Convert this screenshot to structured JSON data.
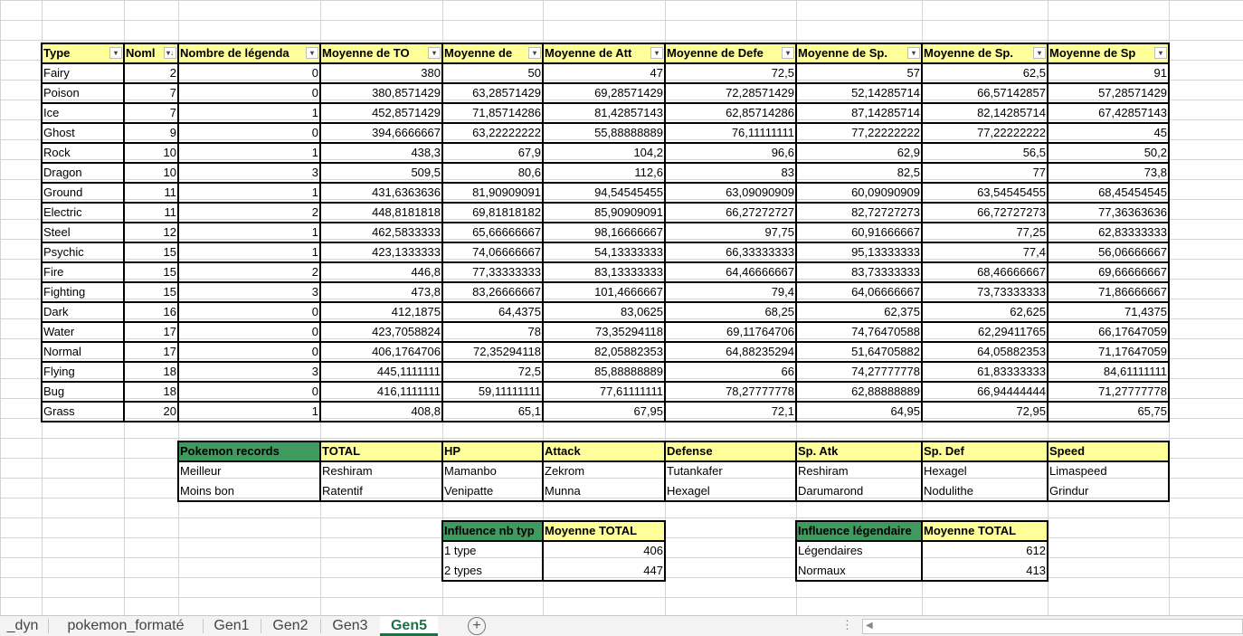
{
  "main_table": {
    "headers": [
      "Type",
      "Nombre",
      "Nombre de légendaires",
      "Moyenne de TOTAL",
      "Moyenne de HP",
      "Moyenne de Attack",
      "Moyenne de Defense",
      "Moyenne de Sp. Atk",
      "Moyenne de Sp. Def",
      "Moyenne de Speed"
    ],
    "header_display": [
      "Type",
      "Noml",
      "Nombre de légenda",
      "Moyenne de TO",
      "Moyenne de",
      "Moyenne de Att",
      "Moyenne de Defe",
      "Moyenne de Sp.",
      "Moyenne de Sp.",
      "Moyenne de Sp"
    ],
    "rows": [
      [
        "Fairy",
        "2",
        "0",
        "380",
        "50",
        "47",
        "72,5",
        "57",
        "62,5",
        "91"
      ],
      [
        "Poison",
        "7",
        "0",
        "380,8571429",
        "63,28571429",
        "69,28571429",
        "72,28571429",
        "52,14285714",
        "66,57142857",
        "57,28571429"
      ],
      [
        "Ice",
        "7",
        "1",
        "452,8571429",
        "71,85714286",
        "81,42857143",
        "62,85714286",
        "87,14285714",
        "82,14285714",
        "67,42857143"
      ],
      [
        "Ghost",
        "9",
        "0",
        "394,6666667",
        "63,22222222",
        "55,88888889",
        "76,11111111",
        "77,22222222",
        "77,22222222",
        "45"
      ],
      [
        "Rock",
        "10",
        "1",
        "438,3",
        "67,9",
        "104,2",
        "96,6",
        "62,9",
        "56,5",
        "50,2"
      ],
      [
        "Dragon",
        "10",
        "3",
        "509,5",
        "80,6",
        "112,6",
        "83",
        "82,5",
        "77",
        "73,8"
      ],
      [
        "Ground",
        "11",
        "1",
        "431,6363636",
        "81,90909091",
        "94,54545455",
        "63,09090909",
        "60,09090909",
        "63,54545455",
        "68,45454545"
      ],
      [
        "Electric",
        "11",
        "2",
        "448,8181818",
        "69,81818182",
        "85,90909091",
        "66,27272727",
        "82,72727273",
        "66,72727273",
        "77,36363636"
      ],
      [
        "Steel",
        "12",
        "1",
        "462,5833333",
        "65,66666667",
        "98,16666667",
        "97,75",
        "60,91666667",
        "77,25",
        "62,83333333"
      ],
      [
        "Psychic",
        "15",
        "1",
        "423,1333333",
        "74,06666667",
        "54,13333333",
        "66,33333333",
        "95,13333333",
        "77,4",
        "56,06666667"
      ],
      [
        "Fire",
        "15",
        "2",
        "446,8",
        "77,33333333",
        "83,13333333",
        "64,46666667",
        "83,73333333",
        "68,46666667",
        "69,66666667"
      ],
      [
        "Fighting",
        "15",
        "3",
        "473,8",
        "83,26666667",
        "101,4666667",
        "79,4",
        "64,06666667",
        "73,73333333",
        "71,86666667"
      ],
      [
        "Dark",
        "16",
        "0",
        "412,1875",
        "64,4375",
        "83,0625",
        "68,25",
        "62,375",
        "62,625",
        "71,4375"
      ],
      [
        "Water",
        "17",
        "0",
        "423,7058824",
        "78",
        "73,35294118",
        "69,11764706",
        "74,76470588",
        "62,29411765",
        "66,17647059"
      ],
      [
        "Normal",
        "17",
        "0",
        "406,1764706",
        "72,35294118",
        "82,05882353",
        "64,88235294",
        "51,64705882",
        "64,05882353",
        "71,17647059"
      ],
      [
        "Flying",
        "18",
        "3",
        "445,1111111",
        "72,5",
        "85,88888889",
        "66",
        "74,27777778",
        "61,83333333",
        "84,61111111"
      ],
      [
        "Bug",
        "18",
        "0",
        "416,1111111",
        "59,11111111",
        "77,61111111",
        "78,27777778",
        "62,88888889",
        "66,94444444",
        "71,27777778"
      ],
      [
        "Grass",
        "20",
        "1",
        "408,8",
        "65,1",
        "67,95",
        "72,1",
        "64,95",
        "72,95",
        "65,75"
      ]
    ]
  },
  "records_table": {
    "headers": [
      "Pokemon records",
      "TOTAL",
      "HP",
      "Attack",
      "Defense",
      "Sp. Atk",
      "Sp. Def",
      "Speed"
    ],
    "rows": [
      [
        "Meilleur",
        "Reshiram",
        "Mamanbo",
        "Zekrom",
        "Tutankafer",
        "Reshiram",
        "Hexagel",
        "Limaspeed"
      ],
      [
        "Moins bon",
        "Ratentif",
        "Venipatte",
        "Munna",
        "Hexagel",
        "Darumarond",
        "Nodulithe",
        "Grindur"
      ]
    ]
  },
  "types_table": {
    "headers": [
      "Influence nb types",
      "Moyenne TOTAL"
    ],
    "header_display": [
      "Influence nb typ",
      "Moyenne TOTAL"
    ],
    "rows": [
      [
        "1 type",
        "406"
      ],
      [
        "2 types",
        "447"
      ]
    ]
  },
  "legend_table": {
    "headers": [
      "Influence légendaire",
      "Moyenne TOTAL"
    ],
    "header_display": [
      "Influence légendaire",
      "Moyenne TOTAL"
    ],
    "rows": [
      [
        "Légendaires",
        "612"
      ],
      [
        "Normaux",
        "413"
      ]
    ]
  },
  "sheet_tabs": {
    "items": [
      "_dyn",
      "pokemon_formaté",
      "Gen1",
      "Gen2",
      "Gen3",
      "Gen5"
    ],
    "active": "Gen5",
    "add_label": "+"
  },
  "colors": {
    "header_yellow": "#ffff99",
    "header_green": "#3f9a5f",
    "active_tab": "#1e7145"
  }
}
